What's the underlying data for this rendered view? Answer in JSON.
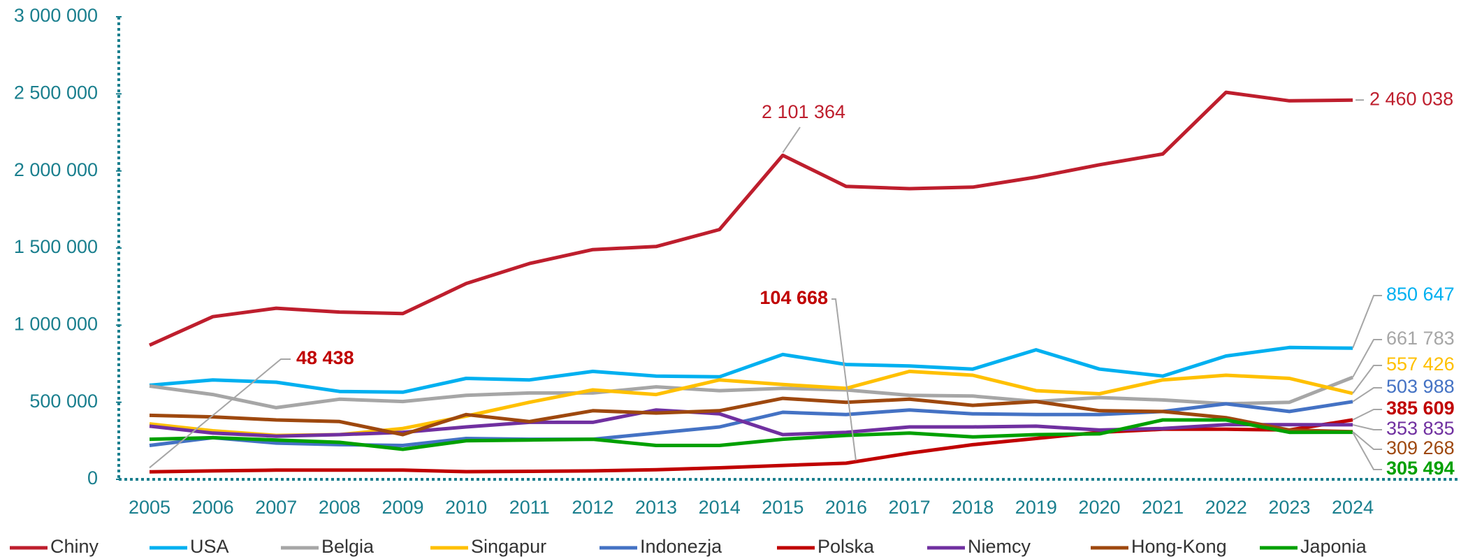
{
  "chart_data": {
    "type": "line",
    "categories": [
      "2005",
      "2006",
      "2007",
      "2008",
      "2009",
      "2010",
      "2011",
      "2012",
      "2013",
      "2014",
      "2015",
      "2016",
      "2017",
      "2018",
      "2019",
      "2020",
      "2021",
      "2022",
      "2023",
      "2024"
    ],
    "ylim": [
      0,
      3000000
    ],
    "yticks": [
      {
        "value": 0,
        "label": "0"
      },
      {
        "value": 500000,
        "label": "500 000"
      },
      {
        "value": 1000000,
        "label": "1 000 000"
      },
      {
        "value": 1500000,
        "label": "1 500 000"
      },
      {
        "value": 2000000,
        "label": "2 000 000"
      },
      {
        "value": 2500000,
        "label": "2 500 000"
      },
      {
        "value": 3000000,
        "label": "3 000 000"
      }
    ],
    "grid": false,
    "legend": "bottom",
    "series": [
      {
        "name": "Chiny",
        "color": "#be1e2d",
        "values": [
          870000,
          1055000,
          1110000,
          1085000,
          1075000,
          1270000,
          1400000,
          1490000,
          1510000,
          1620000,
          2101364,
          1900000,
          1885000,
          1895000,
          1960000,
          2040000,
          2110000,
          2510000,
          2455000,
          2460038
        ],
        "value_labels": [
          null,
          null,
          null,
          null,
          null,
          null,
          null,
          null,
          null,
          null,
          "2 101 364",
          null,
          null,
          null,
          null,
          null,
          null,
          null,
          null,
          "2 460 038"
        ]
      },
      {
        "name": "USA",
        "color": "#00b0f0",
        "values": [
          610000,
          645000,
          630000,
          570000,
          565000,
          655000,
          645000,
          700000,
          670000,
          665000,
          810000,
          745000,
          735000,
          715000,
          840000,
          715000,
          670000,
          800000,
          855000,
          850647
        ],
        "value_labels": [
          null,
          null,
          null,
          null,
          null,
          null,
          null,
          null,
          null,
          null,
          null,
          null,
          null,
          null,
          null,
          null,
          null,
          null,
          null,
          "850 647"
        ]
      },
      {
        "name": "Belgia",
        "color": "#a6a6a6",
        "values": [
          605000,
          550000,
          465000,
          520000,
          505000,
          545000,
          560000,
          560000,
          600000,
          575000,
          590000,
          580000,
          545000,
          540000,
          505000,
          530000,
          515000,
          490000,
          500000,
          661783
        ],
        "value_labels": [
          null,
          null,
          null,
          null,
          null,
          null,
          null,
          null,
          null,
          null,
          null,
          null,
          null,
          null,
          null,
          null,
          null,
          null,
          null,
          "661 783"
        ]
      },
      {
        "name": "Singapur",
        "color": "#ffc000",
        "values": [
          360000,
          315000,
          285000,
          290000,
          330000,
          410000,
          500000,
          580000,
          550000,
          645000,
          615000,
          590000,
          700000,
          675000,
          575000,
          555000,
          645000,
          675000,
          655000,
          557426
        ],
        "value_labels": [
          null,
          null,
          null,
          null,
          null,
          null,
          null,
          null,
          null,
          null,
          null,
          null,
          null,
          null,
          null,
          null,
          null,
          null,
          null,
          "557 426"
        ]
      },
      {
        "name": "Indonezja",
        "color": "#4472c4",
        "values": [
          220000,
          270000,
          235000,
          225000,
          220000,
          265000,
          260000,
          260000,
          300000,
          340000,
          435000,
          420000,
          450000,
          425000,
          420000,
          420000,
          440000,
          490000,
          440000,
          503988
        ],
        "value_labels": [
          null,
          null,
          null,
          null,
          null,
          null,
          null,
          null,
          null,
          null,
          null,
          null,
          null,
          null,
          null,
          null,
          null,
          null,
          null,
          "503 988"
        ]
      },
      {
        "name": "Polska",
        "color": "#c00000",
        "values": [
          48438,
          55000,
          60000,
          60000,
          60000,
          50000,
          52000,
          55000,
          62000,
          75000,
          90000,
          104668,
          170000,
          225000,
          265000,
          305000,
          325000,
          325000,
          320000,
          385609
        ],
        "value_labels": [
          "48 438",
          null,
          null,
          null,
          null,
          null,
          null,
          null,
          null,
          null,
          null,
          "104 668",
          null,
          null,
          null,
          null,
          null,
          null,
          null,
          "385 609"
        ]
      },
      {
        "name": "Niemcy",
        "color": "#7030a0",
        "values": [
          345000,
          300000,
          280000,
          290000,
          305000,
          340000,
          370000,
          370000,
          450000,
          425000,
          290000,
          305000,
          340000,
          340000,
          345000,
          320000,
          330000,
          355000,
          355000,
          353835
        ],
        "value_labels": [
          null,
          null,
          null,
          null,
          null,
          null,
          null,
          null,
          null,
          null,
          null,
          null,
          null,
          null,
          null,
          null,
          null,
          null,
          null,
          "353 835"
        ]
      },
      {
        "name": "Hong-Kong",
        "color": "#9e480e",
        "values": [
          415000,
          405000,
          385000,
          375000,
          290000,
          420000,
          375000,
          445000,
          430000,
          445000,
          525000,
          500000,
          520000,
          480000,
          505000,
          445000,
          440000,
          400000,
          320000,
          309268
        ],
        "value_labels": [
          null,
          null,
          null,
          null,
          null,
          null,
          null,
          null,
          null,
          null,
          null,
          null,
          null,
          null,
          null,
          null,
          null,
          null,
          null,
          "309 268"
        ]
      },
      {
        "name": "Japonia",
        "color": "#00a000",
        "values": [
          260000,
          270000,
          255000,
          240000,
          195000,
          250000,
          255000,
          260000,
          220000,
          220000,
          260000,
          285000,
          300000,
          275000,
          290000,
          295000,
          385000,
          385000,
          305000,
          305494
        ],
        "value_labels": [
          null,
          null,
          null,
          null,
          null,
          null,
          null,
          null,
          null,
          null,
          null,
          null,
          null,
          null,
          null,
          null,
          null,
          null,
          null,
          "305 494"
        ]
      }
    ]
  }
}
